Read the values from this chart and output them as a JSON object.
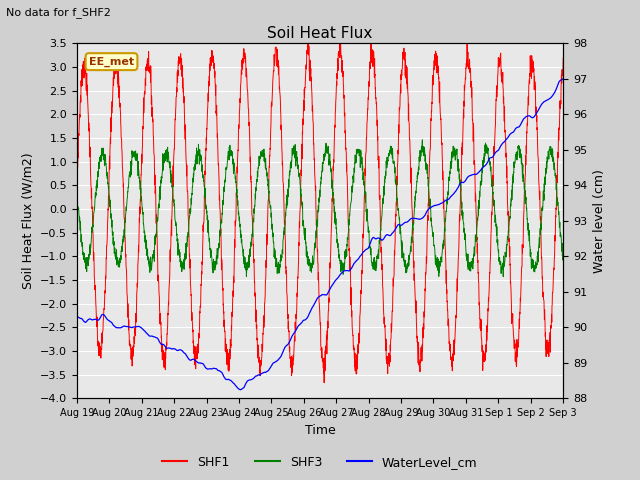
{
  "title": "Soil Heat Flux",
  "suptitle": "No data for f_SHF2",
  "ylabel_left": "Soil Heat Flux (W/m2)",
  "ylabel_right": "Water level (cm)",
  "xlabel": "Time",
  "ylim_left": [
    -4.0,
    3.5
  ],
  "ylim_right": [
    88.0,
    98.0
  ],
  "yticks_left": [
    3.5,
    3.0,
    2.5,
    2.0,
    1.5,
    1.0,
    0.5,
    0.0,
    -0.5,
    -1.0,
    -1.5,
    -2.0,
    -2.5,
    -3.0,
    -3.5,
    -4.0
  ],
  "yticks_right": [
    98.0,
    97.0,
    96.0,
    95.0,
    94.0,
    93.0,
    92.0,
    91.0,
    90.0,
    89.0,
    88.0
  ],
  "xtick_labels": [
    "Aug 19",
    "Aug 20",
    "Aug 21",
    "Aug 22",
    "Aug 23",
    "Aug 24",
    "Aug 25",
    "Aug 26",
    "Aug 27",
    "Aug 28",
    "Aug 29",
    "Aug 30",
    "Aug 31",
    "Sep 1",
    "Sep 2",
    "Sep 3"
  ],
  "legend_items": [
    "SHF1",
    "SHF3",
    "WaterLevel_cm"
  ],
  "legend_colors": [
    "red",
    "green",
    "blue"
  ],
  "annotation_text": "EE_met",
  "annotation_fg": "#993300",
  "annotation_bg": "#ffffcc",
  "annotation_edge": "#cc9900",
  "plot_bg_color": "#e8e8e8",
  "fig_bg_color": "#d0d0d0",
  "grid_color": "white",
  "shf1_color": "red",
  "shf3_color": "green",
  "water_color": "blue",
  "tick_fontsize": 8,
  "label_fontsize": 9,
  "title_fontsize": 11
}
